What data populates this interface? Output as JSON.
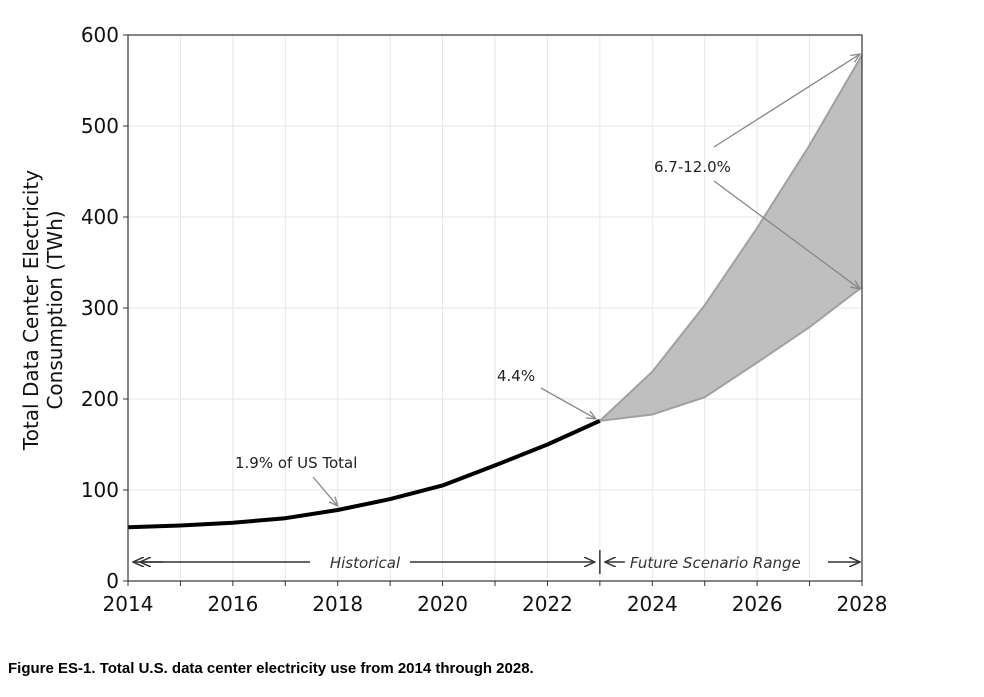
{
  "chart_data": {
    "type": "line",
    "title": "",
    "xlabel": "",
    "ylabel": "Total Data Center Electricity Consumption (TWh)",
    "ylabel_lines": [
      "Total Data Center Electricity",
      "Consumption (TWh)"
    ],
    "xlim": [
      2014,
      2028
    ],
    "ylim": [
      0,
      600
    ],
    "grid": true,
    "xticks": [
      2014,
      2016,
      2018,
      2020,
      2022,
      2024,
      2026,
      2028
    ],
    "yticks": [
      0,
      100,
      200,
      300,
      400,
      500,
      600
    ],
    "historical": {
      "name": "Historical",
      "x": [
        2014,
        2015,
        2016,
        2017,
        2018,
        2019,
        2020,
        2021,
        2022,
        2023
      ],
      "y": [
        59,
        61,
        64,
        69,
        78,
        90,
        105,
        127,
        150,
        176
      ]
    },
    "scenario_range": {
      "name": "Future Scenario Range",
      "x": [
        2023,
        2024,
        2025,
        2026,
        2027,
        2028
      ],
      "upper": [
        176,
        230,
        303,
        388,
        479,
        578
      ],
      "lower": [
        176,
        183,
        202,
        240,
        279,
        323
      ]
    },
    "annotations": [
      {
        "text": "1.9% of US Total",
        "target": [
          2018,
          78
        ]
      },
      {
        "text": "4.4%",
        "target": [
          2023,
          176
        ]
      },
      {
        "text": "6.7-12.0%",
        "targets": [
          [
            2028,
            578
          ],
          [
            2028,
            323
          ]
        ]
      }
    ],
    "period_labels": {
      "historical": "Historical",
      "future": "Future Scenario Range"
    }
  },
  "caption": "Figure ES-1. Total U.S. data center electricity use from 2014 through 2028."
}
